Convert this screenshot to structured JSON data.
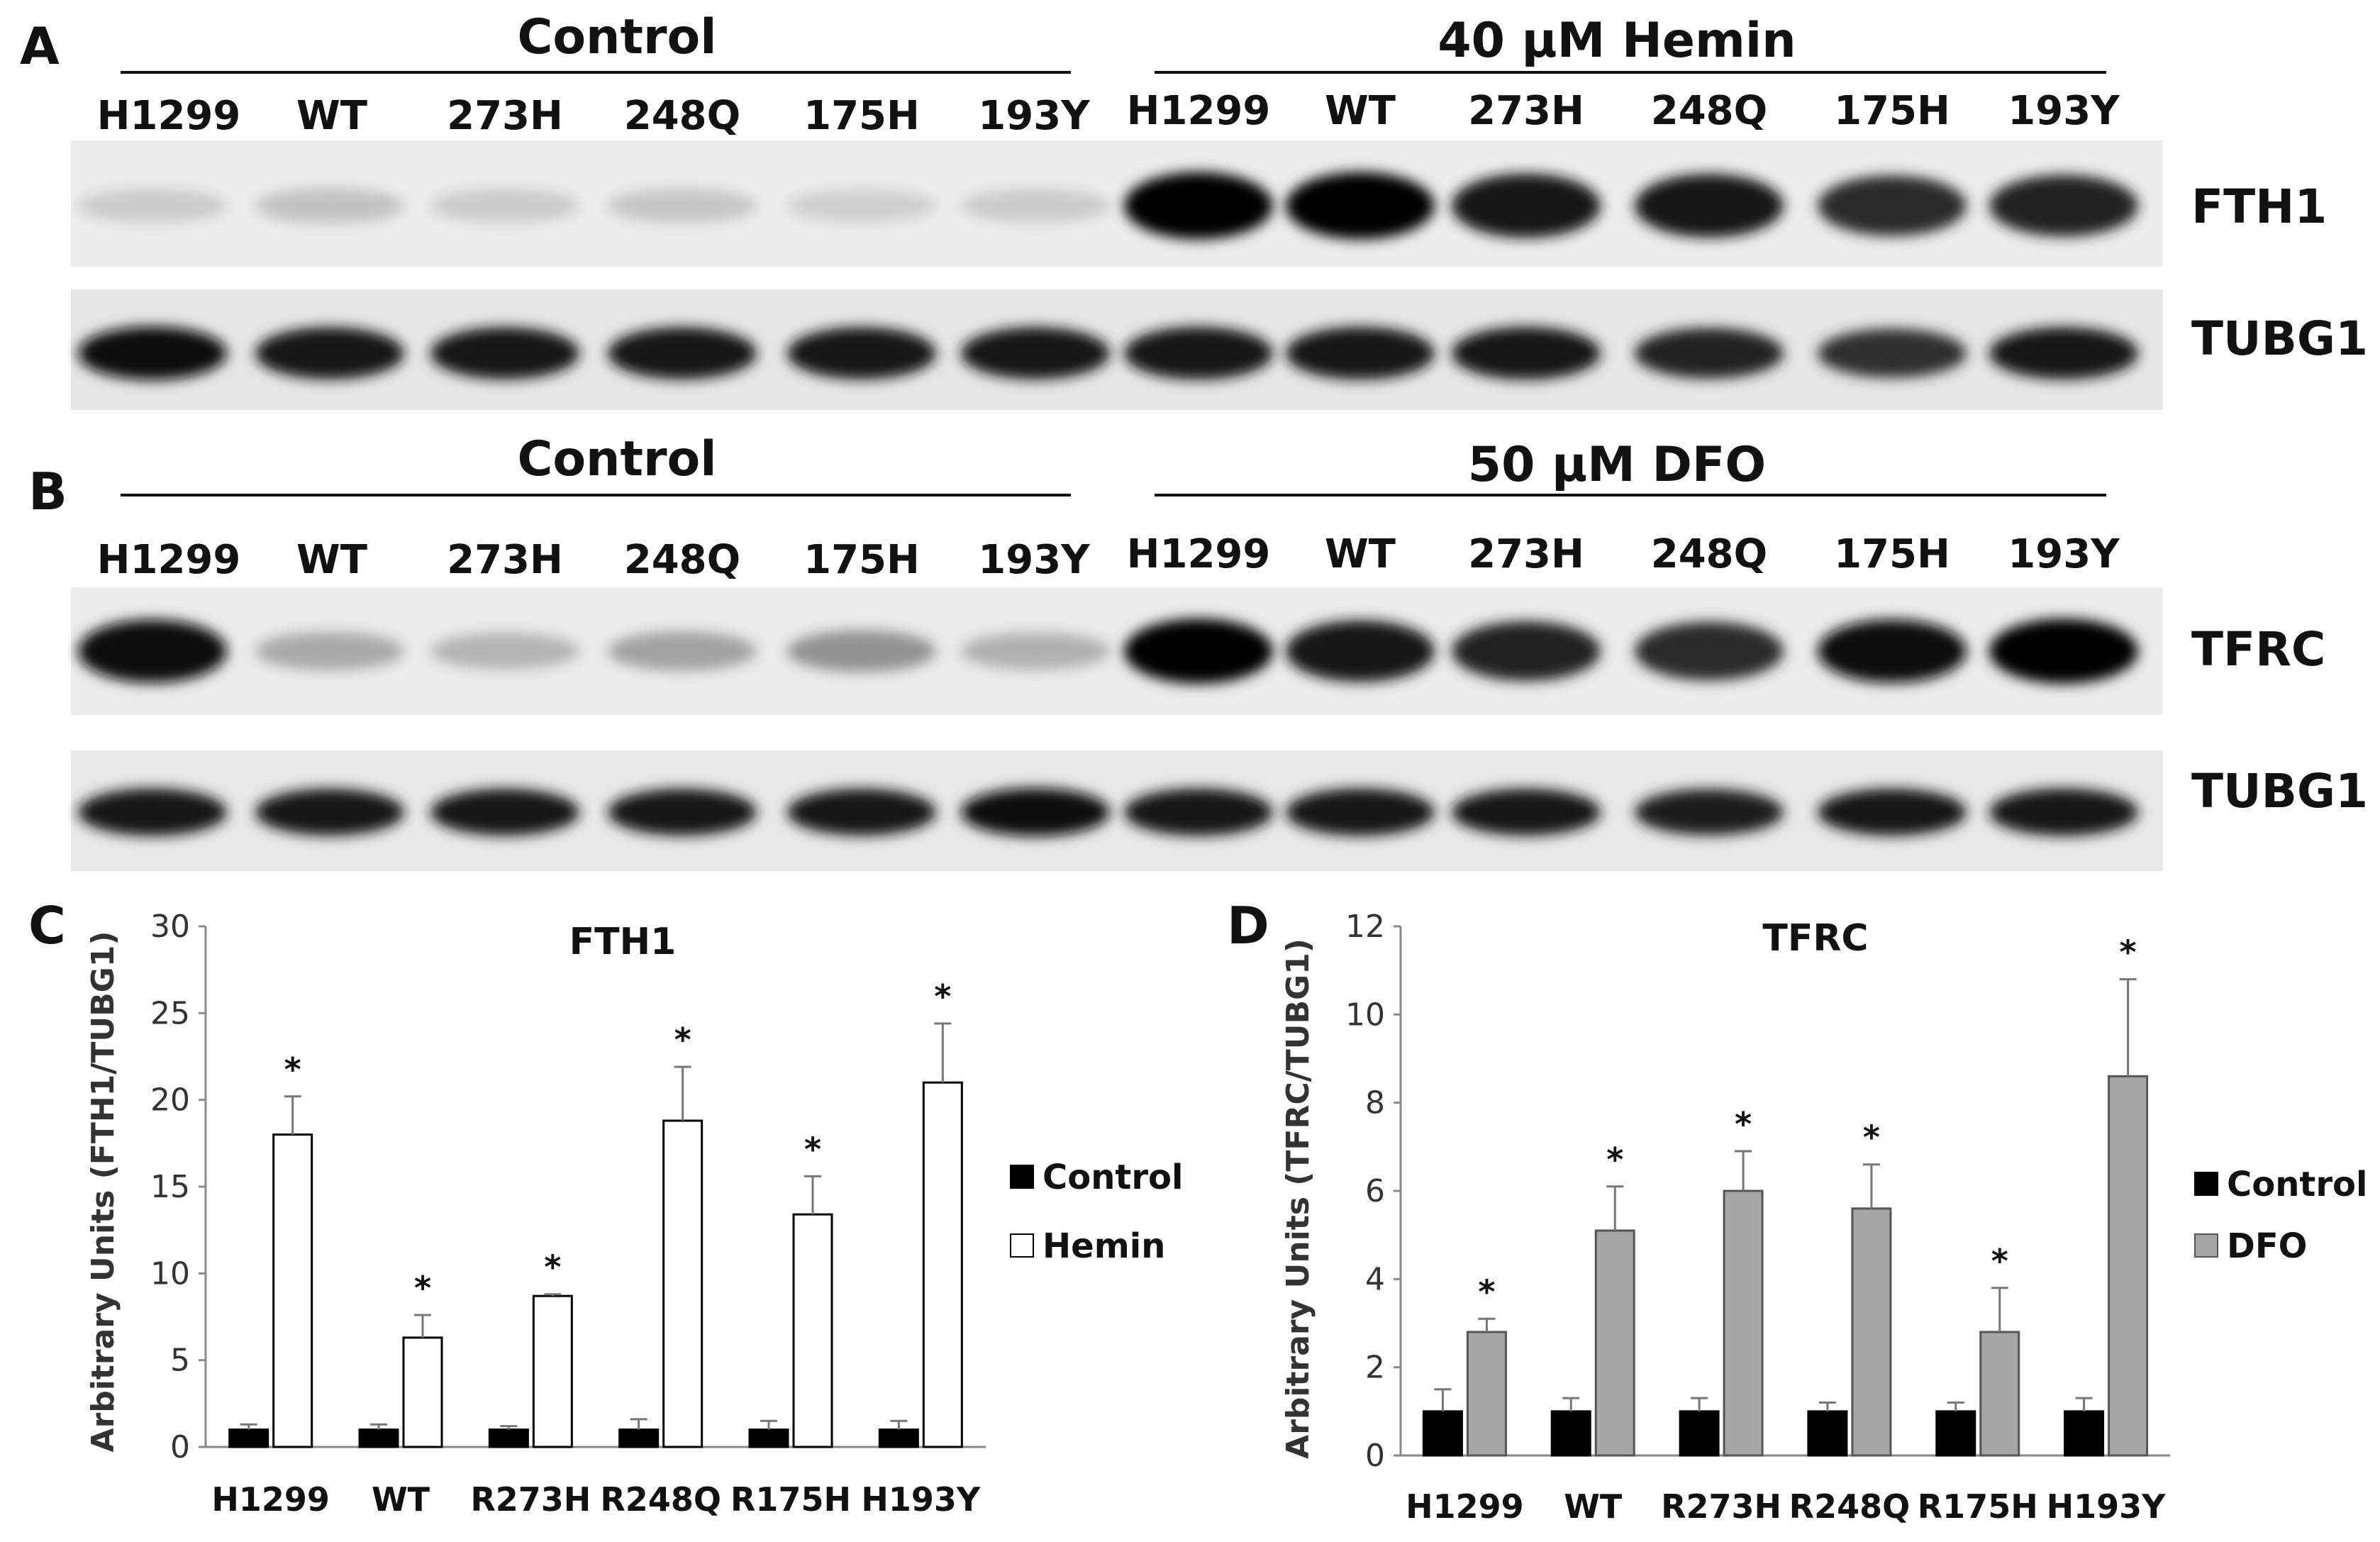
{
  "panels": {
    "A": {
      "letter": "A",
      "conditions": [
        "Control",
        "40 μM Hemin"
      ],
      "lanes": [
        [
          "H1299",
          "WT",
          "273H",
          "248Q",
          "175H",
          "193Y"
        ],
        [
          "H1299",
          "WT",
          "273H",
          "248Q",
          "175H",
          "193Y"
        ]
      ],
      "blots": [
        {
          "protein": "FTH1",
          "intensity": [
            0.1,
            0.14,
            0.1,
            0.12,
            0.08,
            0.1,
            1.0,
            1.0,
            0.92,
            0.9,
            0.82,
            0.85
          ]
        },
        {
          "protein": "TUBG1",
          "intensity": [
            0.95,
            0.9,
            0.9,
            0.9,
            0.9,
            0.9,
            0.92,
            0.92,
            0.92,
            0.85,
            0.8,
            0.9
          ]
        }
      ]
    },
    "B": {
      "letter": "B",
      "conditions": [
        "Control",
        "50 μM DFO"
      ],
      "lanes": [
        [
          "H1299",
          "WT",
          "273H",
          "248Q",
          "175H",
          "193Y"
        ],
        [
          "H1299",
          "WT",
          "273H",
          "248Q",
          "175H",
          "193Y"
        ]
      ],
      "blots": [
        {
          "protein": "TFRC",
          "intensity": [
            0.95,
            0.25,
            0.2,
            0.28,
            0.35,
            0.22,
            1.0,
            0.9,
            0.85,
            0.82,
            0.95,
            1.0
          ]
        },
        {
          "protein": "TUBG1",
          "intensity": [
            0.92,
            0.9,
            0.9,
            0.9,
            0.9,
            0.95,
            0.92,
            0.92,
            0.9,
            0.88,
            0.9,
            0.92
          ]
        }
      ]
    }
  },
  "chart_data": [
    {
      "panel": "C",
      "type": "bar",
      "title": "FTH1",
      "ylabel": "Arbitrary Units (FTH1/TUBG1)",
      "ylim": [
        0,
        30
      ],
      "yticks": [
        0,
        5,
        10,
        15,
        20,
        25,
        30
      ],
      "categories": [
        "H1299",
        "WT",
        "R273H",
        "R248Q",
        "R175H",
        "H193Y"
      ],
      "series": [
        {
          "name": "Control",
          "color": "#000000",
          "values": [
            1,
            1,
            1,
            1,
            1,
            1
          ],
          "errors": [
            0.3,
            0.3,
            0.2,
            0.6,
            0.5,
            0.5
          ]
        },
        {
          "name": "Hemin",
          "color": "#ffffff",
          "values": [
            18,
            6.3,
            8.7,
            18.8,
            13.4,
            21
          ],
          "errors": [
            2.2,
            1.3,
            0.1,
            3.1,
            2.2,
            3.4
          ]
        }
      ],
      "significance": [
        true,
        true,
        true,
        true,
        true,
        true
      ],
      "significance_marker": "*",
      "legend_position": "right",
      "grid": false
    },
    {
      "panel": "D",
      "type": "bar",
      "title": "TFRC",
      "ylabel": "Arbitrary Units (TFRC/TUBG1)",
      "ylim": [
        0,
        12
      ],
      "yticks": [
        0,
        2,
        4,
        6,
        8,
        10,
        12
      ],
      "categories": [
        "H1299",
        "WT",
        "R273H",
        "R248Q",
        "R175H",
        "H193Y"
      ],
      "series": [
        {
          "name": "Control",
          "color": "#000000",
          "values": [
            1,
            1,
            1,
            1,
            1,
            1
          ],
          "errors": [
            0.5,
            0.3,
            0.3,
            0.2,
            0.2,
            0.3
          ]
        },
        {
          "name": "DFO",
          "color": "#a6a6a6",
          "values": [
            2.8,
            5.1,
            6.0,
            5.6,
            2.8,
            8.6
          ],
          "errors": [
            0.3,
            1.0,
            0.9,
            1.0,
            1.0,
            2.2
          ]
        }
      ],
      "significance": [
        true,
        true,
        true,
        true,
        true,
        true
      ],
      "significance_marker": "*",
      "legend_position": "right",
      "grid": false
    }
  ]
}
